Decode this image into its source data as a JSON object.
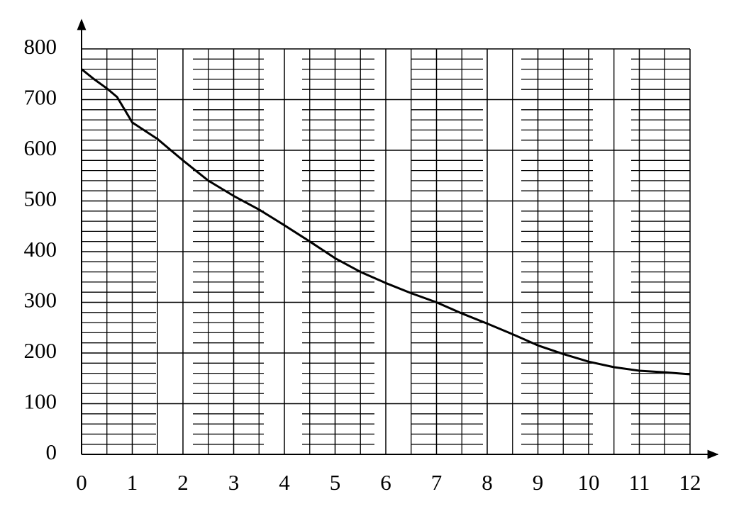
{
  "chart_data": {
    "type": "line",
    "color": "#000000",
    "grid": true,
    "x": [
      0,
      0.25,
      0.5,
      0.7,
      1,
      1.5,
      2,
      2.5,
      3,
      3.5,
      4,
      4.5,
      5,
      5.5,
      6,
      6.5,
      7,
      7.5,
      8,
      8.5,
      9,
      9.5,
      10,
      10.5,
      11,
      11.5,
      12
    ],
    "values": [
      760,
      740,
      722,
      705,
      655,
      622,
      580,
      540,
      510,
      483,
      452,
      420,
      387,
      360,
      338,
      318,
      300,
      278,
      258,
      237,
      215,
      198,
      183,
      172,
      165,
      162,
      158
    ],
    "xlim": [
      0,
      12
    ],
    "xticks": [
      0,
      1,
      2,
      3,
      4,
      5,
      6,
      7,
      8,
      9,
      10,
      11,
      12
    ],
    "ylim": [
      0,
      800
    ],
    "yticks": [
      0,
      100,
      200,
      300,
      400,
      500,
      600,
      700,
      800
    ]
  }
}
